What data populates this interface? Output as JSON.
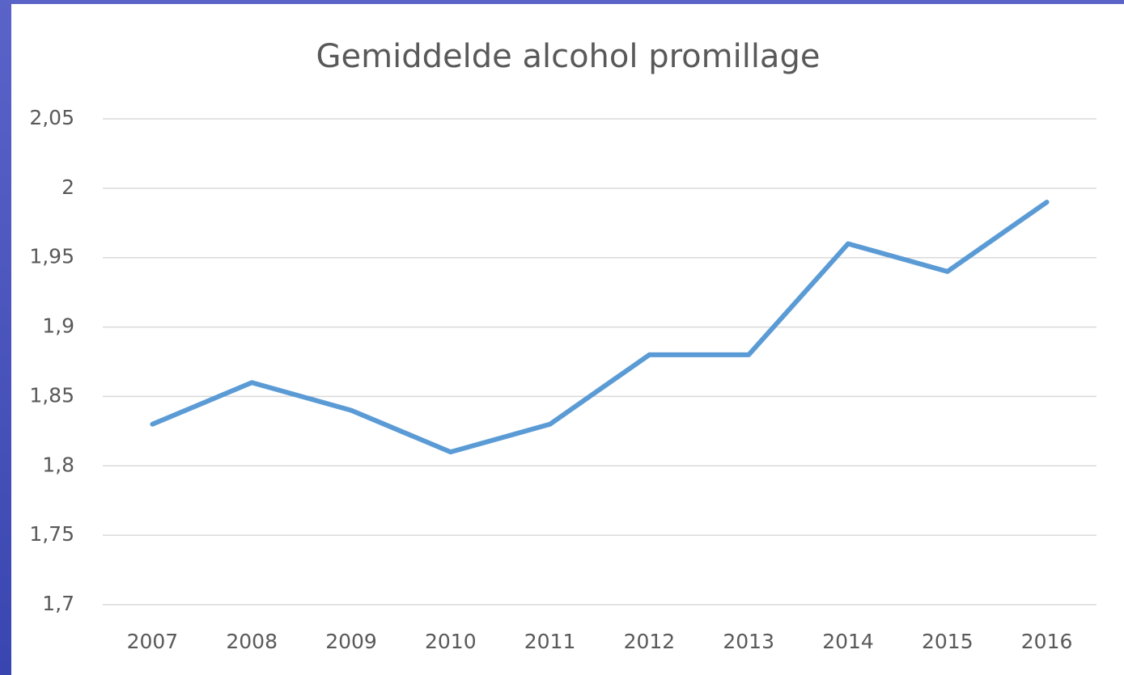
{
  "chart_data": {
    "type": "line",
    "title": "Gemiddelde alcohol promillage",
    "categories": [
      "2007",
      "2008",
      "2009",
      "2010",
      "2011",
      "2012",
      "2013",
      "2014",
      "2015",
      "2016"
    ],
    "values": [
      1.83,
      1.86,
      1.84,
      1.81,
      1.83,
      1.88,
      1.88,
      1.96,
      1.94,
      1.99
    ],
    "color": "#5b9bd5",
    "ylim": [
      1.7,
      2.05
    ],
    "yticks": [
      {
        "value": 1.7,
        "label": "1,7"
      },
      {
        "value": 1.75,
        "label": "1,75"
      },
      {
        "value": 1.8,
        "label": "1,8"
      },
      {
        "value": 1.85,
        "label": "1,85"
      },
      {
        "value": 1.9,
        "label": "1,9"
      },
      {
        "value": 1.95,
        "label": "1,95"
      },
      2,
      {
        "value": 2.05,
        "label": "2,05"
      }
    ],
    "grid": true
  }
}
